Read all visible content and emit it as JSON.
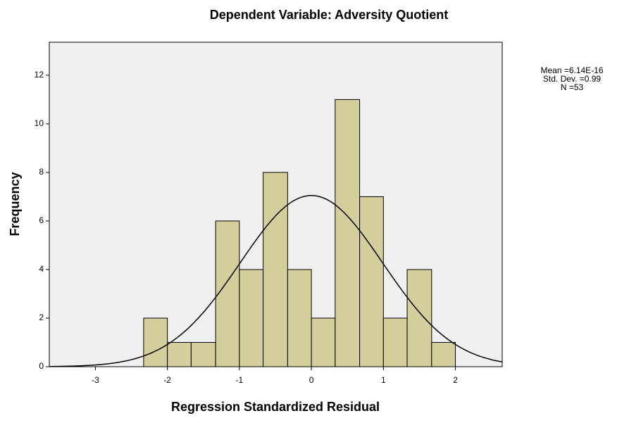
{
  "chart_data": {
    "type": "histogram",
    "title": "Dependent Variable: Adversity Quotient",
    "xlabel": "Regression Standardized Residual",
    "ylabel": "Frequency",
    "bins": [
      -2.33,
      -2,
      -1.67,
      -1.33,
      -1,
      -0.67,
      -0.33,
      0,
      0.33,
      0.67,
      1,
      1.33,
      1.67,
      2
    ],
    "values": [
      2,
      1,
      1,
      6,
      4,
      8,
      4,
      2,
      11,
      7,
      2,
      4,
      1
    ],
    "color": "#d4cf9a",
    "xlim": [
      -3.64,
      2.65
    ],
    "xticks": [
      -3,
      -2,
      -1,
      0,
      1,
      2
    ],
    "ylim": [
      0,
      13.36
    ],
    "yticks": [
      0,
      2,
      4,
      6,
      8,
      10,
      12
    ],
    "stats": [
      {
        "label": "Mean =6.14E-16",
        "value": 6.14e-16
      },
      {
        "label": "Std. Dev. =0.99",
        "value": 0.99
      },
      {
        "label": "N =53",
        "value": 53
      }
    ],
    "normal_curve": true
  }
}
